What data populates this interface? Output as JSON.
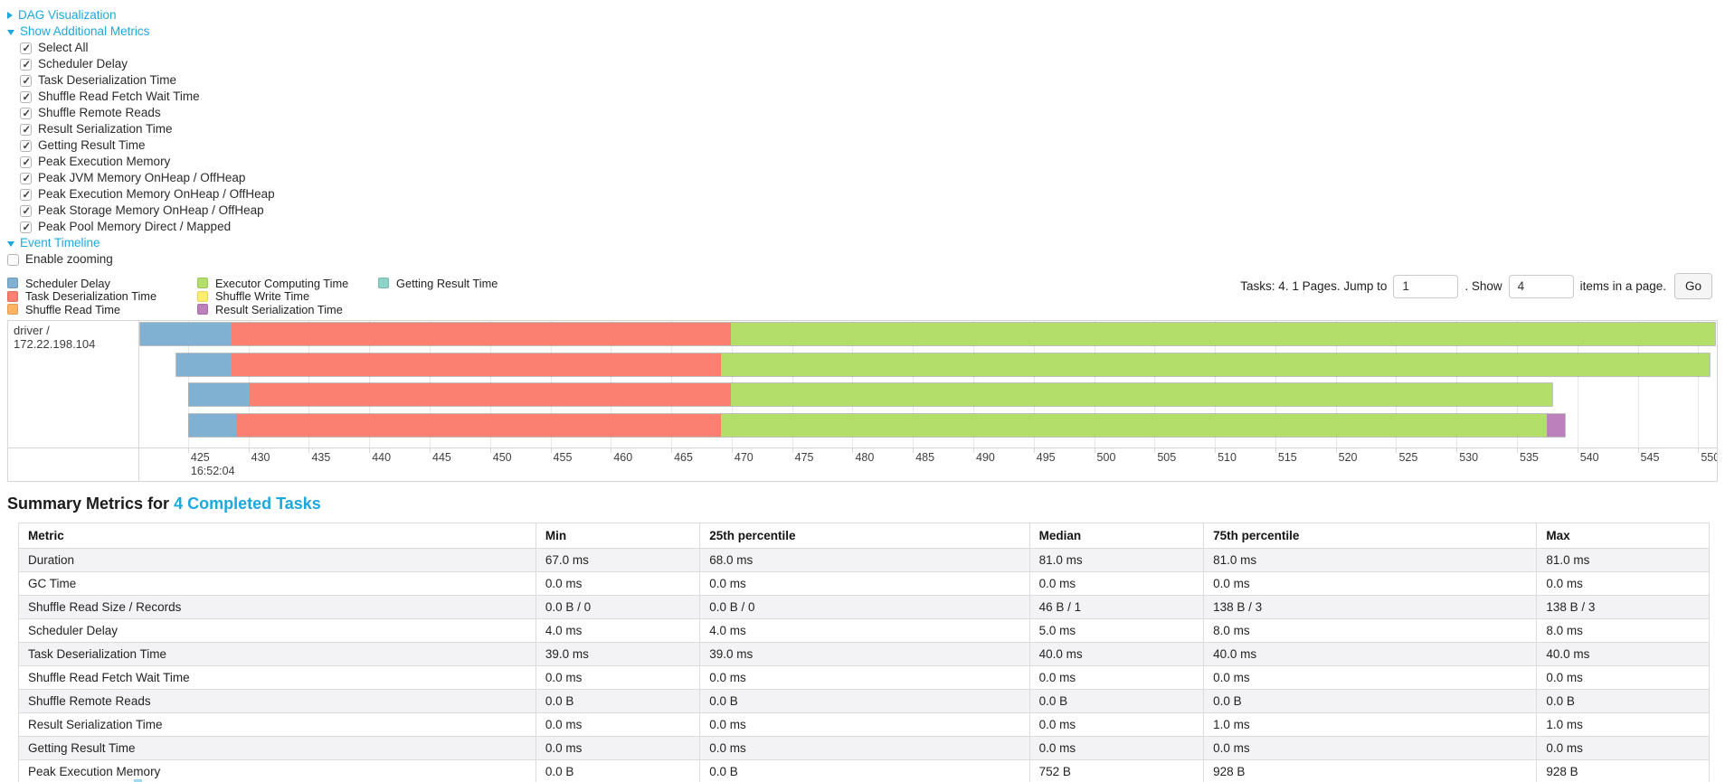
{
  "top": {
    "dag_label": "DAG Visualization",
    "metrics_label": "Show Additional Metrics",
    "timeline_label": "Event Timeline",
    "enable_zooming_label": "Enable zooming"
  },
  "metrics_panel": {
    "options": [
      "Select All",
      "Scheduler Delay",
      "Task Deserialization Time",
      "Shuffle Read Fetch Wait Time",
      "Shuffle Remote Reads",
      "Result Serialization Time",
      "Getting Result Time",
      "Peak Execution Memory",
      "Peak JVM Memory OnHeap / OffHeap",
      "Peak Execution Memory OnHeap / OffHeap",
      "Peak Storage Memory OnHeap / OffHeap",
      "Peak Pool Memory Direct / Mapped"
    ],
    "all_checked": true
  },
  "event_timeline": {
    "enable_zooming_checked": false,
    "legend": {
      "colors": {
        "scheduler_delay": "#80B1D3",
        "task_deserialization": "#FB8072",
        "shuffle_read": "#FDB462",
        "executor_computing": "#B3DE69",
        "shuffle_write": "#FFED6F",
        "result_serialization": "#BC80BD",
        "getting_result": "#8DD3C7"
      },
      "columns": [
        [
          {
            "key": "scheduler_delay",
            "label": "Scheduler Delay"
          },
          {
            "key": "task_deserialization",
            "label": "Task Deserialization Time"
          },
          {
            "key": "shuffle_read",
            "label": "Shuffle Read Time"
          }
        ],
        [
          {
            "key": "executor_computing",
            "label": "Executor Computing Time"
          },
          {
            "key": "shuffle_write",
            "label": "Shuffle Write Time"
          },
          {
            "key": "result_serialization",
            "label": "Result Serialization Time"
          }
        ],
        [
          {
            "key": "getting_result",
            "label": "Getting Result Time"
          }
        ]
      ]
    },
    "pagination": {
      "tasks_text": "Tasks: 4. 1 Pages. Jump to",
      "jump_value": "1",
      "dot_show_text": ". Show",
      "show_value": "4",
      "items_text": "items in a page.",
      "go_label": "Go"
    }
  },
  "chart_data": {
    "type": "timeline",
    "group_label": "driver / 172.22.198.104",
    "x_axis": {
      "major_label": "16:52:04",
      "tick_labels": [
        "425",
        "430",
        "435",
        "440",
        "445",
        "450",
        "455",
        "460",
        "465",
        "470",
        "475",
        "480",
        "485",
        "490",
        "495",
        "500",
        "505",
        "510",
        "515",
        "520",
        "525",
        "530",
        "535",
        "540",
        "545",
        "550"
      ],
      "tick_unit_ms": 5,
      "start_pct": 3.09,
      "step_pct": 3.829
    },
    "bars": [
      {
        "task": 0,
        "times_ms": [
          421.0,
          428.5,
          470.0,
          551.5
        ],
        "segments": [
          {
            "key": "scheduler_delay",
            "start_pct": 0.0,
            "end_pct": 5.77
          },
          {
            "key": "task_deserialization",
            "start_pct": 5.77,
            "end_pct": 37.5
          },
          {
            "key": "executor_computing",
            "start_pct": 37.5,
            "end_pct": 99.95
          }
        ]
      },
      {
        "task": 1,
        "times_ms": [
          424.0,
          428.5,
          469.0,
          550.9
        ],
        "segments": [
          {
            "key": "scheduler_delay",
            "start_pct": 2.32,
            "end_pct": 5.77
          },
          {
            "key": "task_deserialization",
            "start_pct": 5.77,
            "end_pct": 36.85
          },
          {
            "key": "executor_computing",
            "start_pct": 36.85,
            "end_pct": 99.6
          }
        ]
      },
      {
        "task": 2,
        "times_ms": [
          425.0,
          430.0,
          470.0,
          538.0
        ],
        "segments": [
          {
            "key": "scheduler_delay",
            "start_pct": 3.09,
            "end_pct": 6.92
          },
          {
            "key": "task_deserialization",
            "start_pct": 6.92,
            "end_pct": 37.5
          },
          {
            "key": "executor_computing",
            "start_pct": 37.5,
            "end_pct": 89.6
          }
        ]
      },
      {
        "task": 3,
        "times_ms": [
          425.0,
          429.0,
          469.0,
          537.5,
          539.0
        ],
        "segments": [
          {
            "key": "scheduler_delay",
            "start_pct": 3.09,
            "end_pct": 6.16
          },
          {
            "key": "task_deserialization",
            "start_pct": 6.16,
            "end_pct": 36.85
          },
          {
            "key": "executor_computing",
            "start_pct": 36.85,
            "end_pct": 89.25
          },
          {
            "key": "result_serialization",
            "start_pct": 89.25,
            "end_pct": 90.4
          }
        ]
      }
    ]
  },
  "summary": {
    "heading_prefix": "Summary Metrics for ",
    "heading_link": "4 Completed Tasks",
    "table": {
      "headers": [
        "Metric",
        "Min",
        "25th percentile",
        "Median",
        "75th percentile",
        "Max"
      ],
      "rows": [
        [
          "Duration",
          "67.0 ms",
          "68.0 ms",
          "81.0 ms",
          "81.0 ms",
          "81.0 ms"
        ],
        [
          "GC Time",
          "0.0 ms",
          "0.0 ms",
          "0.0 ms",
          "0.0 ms",
          "0.0 ms"
        ],
        [
          "Shuffle Read Size / Records",
          "0.0 B / 0",
          "0.0 B / 0",
          "46 B / 1",
          "138 B / 3",
          "138 B / 3"
        ],
        [
          "Scheduler Delay",
          "4.0 ms",
          "4.0 ms",
          "5.0 ms",
          "8.0 ms",
          "8.0 ms"
        ],
        [
          "Task Deserialization Time",
          "39.0 ms",
          "39.0 ms",
          "40.0 ms",
          "40.0 ms",
          "40.0 ms"
        ],
        [
          "Shuffle Read Fetch Wait Time",
          "0.0 ms",
          "0.0 ms",
          "0.0 ms",
          "0.0 ms",
          "0.0 ms"
        ],
        [
          "Shuffle Remote Reads",
          "0.0 B",
          "0.0 B",
          "0.0 B",
          "0.0 B",
          "0.0 B"
        ],
        [
          "Result Serialization Time",
          "0.0 ms",
          "0.0 ms",
          "0.0 ms",
          "1.0 ms",
          "1.0 ms"
        ],
        [
          "Getting Result Time",
          "0.0 ms",
          "0.0 ms",
          "0.0 ms",
          "0.0 ms",
          "0.0 ms"
        ],
        [
          "Peak Execution Memory",
          "0.0 B",
          "0.0 B",
          "752 B",
          "928 B",
          "928 B"
        ]
      ]
    }
  }
}
